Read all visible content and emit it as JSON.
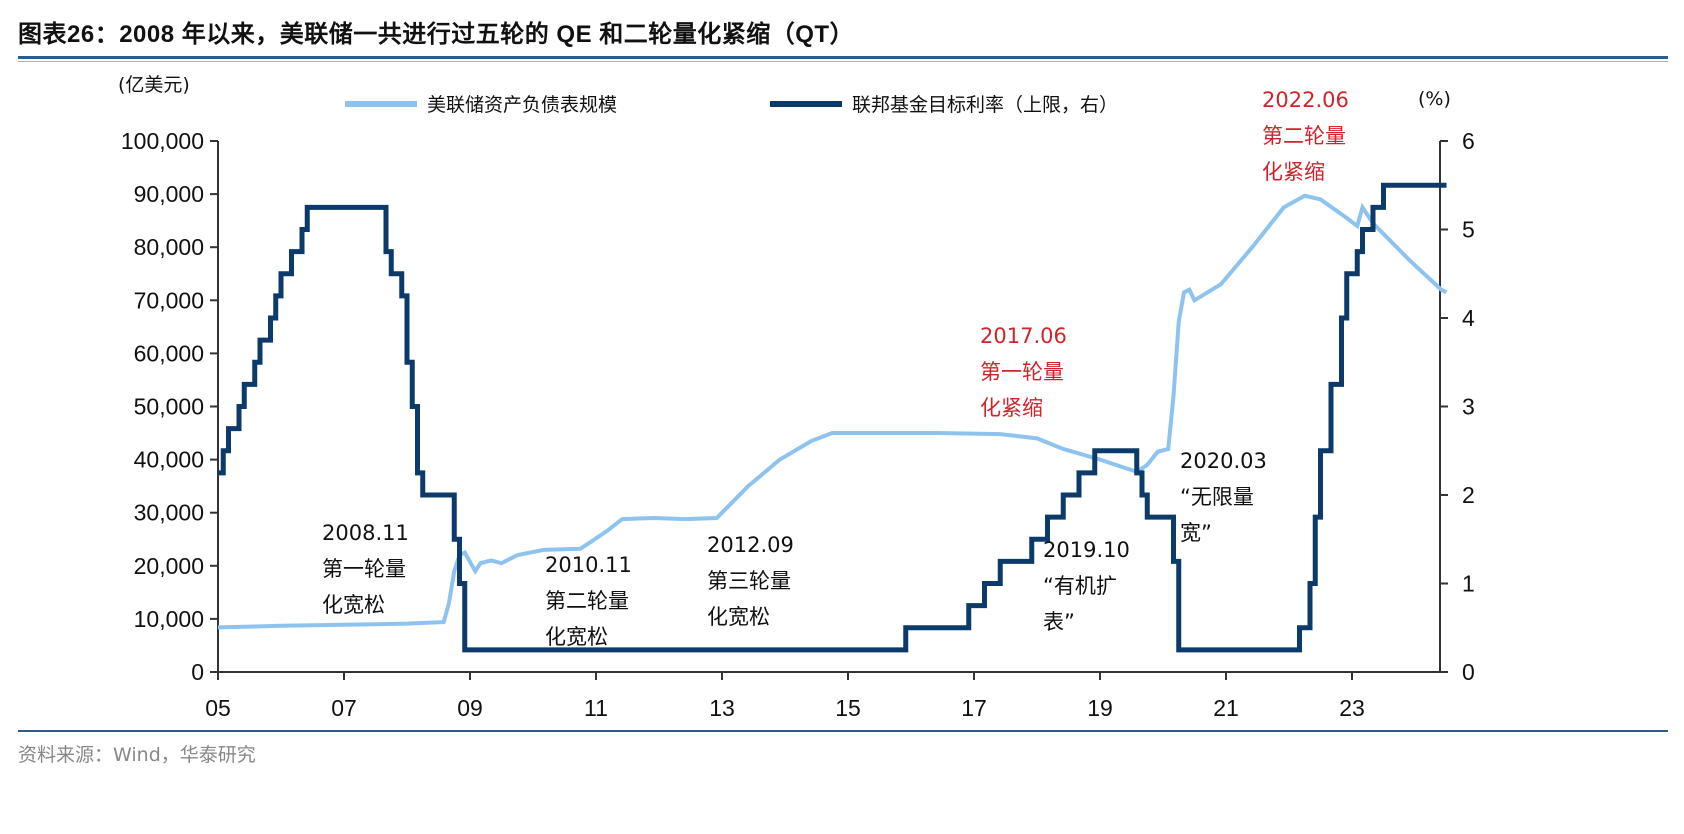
{
  "title": "图表26：2008 年以来，美联储一共进行过五轮的 QE 和二轮量化紧缩（QT）",
  "source": "资料来源：Wind，华泰研究",
  "chart_data": {
    "type": "line",
    "title": "图表26：2008 年以来，美联储一共进行过五轮的 QE 和二轮量化紧缩（QT）",
    "left_axis": {
      "unit_label": "(亿美元)",
      "ylim": [
        0,
        100000
      ],
      "ticks": [
        "0",
        "10,000",
        "20,000",
        "30,000",
        "40,000",
        "50,000",
        "60,000",
        "70,000",
        "80,000",
        "90,000",
        "100,000"
      ]
    },
    "right_axis": {
      "unit_label": "(%)",
      "ylim": [
        0,
        6
      ],
      "ticks": [
        "0",
        "1",
        "2",
        "3",
        "4",
        "5",
        "6"
      ]
    },
    "x_axis": {
      "xlim": [
        "2005-01",
        "2024-07"
      ],
      "ticks": [
        "05",
        "07",
        "09",
        "11",
        "13",
        "15",
        "17",
        "19",
        "21",
        "23"
      ]
    },
    "grid": false,
    "legend_position": "top",
    "series": [
      {
        "name": "美联储资产负债表规模",
        "axis": "left",
        "color": "#8ec3f0",
        "points": [
          [
            "2005-01",
            8400
          ],
          [
            "2006-01",
            8700
          ],
          [
            "2007-01",
            8900
          ],
          [
            "2008-01",
            9100
          ],
          [
            "2008-08",
            9400
          ],
          [
            "2008-09",
            13000
          ],
          [
            "2008-10",
            19000
          ],
          [
            "2008-11",
            22000
          ],
          [
            "2008-12",
            22500
          ],
          [
            "2009-02",
            19000
          ],
          [
            "2009-03",
            20500
          ],
          [
            "2009-05",
            21000
          ],
          [
            "2009-07",
            20500
          ],
          [
            "2009-10",
            22000
          ],
          [
            "2010-03",
            23000
          ],
          [
            "2010-10",
            23200
          ],
          [
            "2010-12",
            24500
          ],
          [
            "2011-03",
            26500
          ],
          [
            "2011-06",
            28800
          ],
          [
            "2011-12",
            29000
          ],
          [
            "2012-06",
            28800
          ],
          [
            "2012-12",
            29000
          ],
          [
            "2013-03",
            32000
          ],
          [
            "2013-06",
            35000
          ],
          [
            "2013-12",
            40000
          ],
          [
            "2014-06",
            43500
          ],
          [
            "2014-10",
            45000
          ],
          [
            "2015-06",
            45000
          ],
          [
            "2016-06",
            45000
          ],
          [
            "2017-06",
            44800
          ],
          [
            "2018-01",
            44000
          ],
          [
            "2018-06",
            42000
          ],
          [
            "2019-01",
            40000
          ],
          [
            "2019-08",
            37700
          ],
          [
            "2019-10",
            39000
          ],
          [
            "2019-12",
            41500
          ],
          [
            "2020-02",
            42000
          ],
          [
            "2020-03",
            52000
          ],
          [
            "2020-04",
            66000
          ],
          [
            "2020-05",
            71500
          ],
          [
            "2020-06",
            72000
          ],
          [
            "2020-07",
            70000
          ],
          [
            "2020-12",
            73000
          ],
          [
            "2021-06",
            80000
          ],
          [
            "2021-12",
            87500
          ],
          [
            "2022-04",
            89700
          ],
          [
            "2022-07",
            89000
          ],
          [
            "2022-12",
            85500
          ],
          [
            "2023-02",
            84000
          ],
          [
            "2023-03",
            87500
          ],
          [
            "2023-05",
            84500
          ],
          [
            "2023-12",
            77500
          ],
          [
            "2024-06",
            72000
          ],
          [
            "2024-07",
            71500
          ]
        ]
      },
      {
        "name": "联邦基金目标利率（上限，右）",
        "axis": "right",
        "color": "#0b3a6b",
        "step": true,
        "points": [
          [
            "2005-01",
            2.25
          ],
          [
            "2005-02",
            2.5
          ],
          [
            "2005-03",
            2.75
          ],
          [
            "2005-05",
            3.0
          ],
          [
            "2005-06",
            3.25
          ],
          [
            "2005-08",
            3.5
          ],
          [
            "2005-09",
            3.75
          ],
          [
            "2005-11",
            4.0
          ],
          [
            "2005-12",
            4.25
          ],
          [
            "2006-01",
            4.5
          ],
          [
            "2006-03",
            4.75
          ],
          [
            "2006-05",
            5.0
          ],
          [
            "2006-06",
            5.25
          ],
          [
            "2007-09",
            4.75
          ],
          [
            "2007-10",
            4.5
          ],
          [
            "2007-12",
            4.25
          ],
          [
            "2008-01",
            3.5
          ],
          [
            "2008-02",
            3.0
          ],
          [
            "2008-03",
            2.25
          ],
          [
            "2008-04",
            2.0
          ],
          [
            "2008-10",
            1.5
          ],
          [
            "2008-11",
            1.0
          ],
          [
            "2008-12",
            0.25
          ],
          [
            "2015-12",
            0.5
          ],
          [
            "2016-12",
            0.75
          ],
          [
            "2017-03",
            1.0
          ],
          [
            "2017-06",
            1.25
          ],
          [
            "2017-12",
            1.5
          ],
          [
            "2018-03",
            1.75
          ],
          [
            "2018-06",
            2.0
          ],
          [
            "2018-09",
            2.25
          ],
          [
            "2018-12",
            2.5
          ],
          [
            "2019-08",
            2.25
          ],
          [
            "2019-09",
            2.0
          ],
          [
            "2019-10",
            1.75
          ],
          [
            "2020-03",
            1.25
          ],
          [
            "2020-04",
            0.25
          ],
          [
            "2022-03",
            0.5
          ],
          [
            "2022-05",
            1.0
          ],
          [
            "2022-06",
            1.75
          ],
          [
            "2022-07",
            2.5
          ],
          [
            "2022-09",
            3.25
          ],
          [
            "2022-11",
            4.0
          ],
          [
            "2022-12",
            4.5
          ],
          [
            "2023-02",
            4.75
          ],
          [
            "2023-03",
            5.0
          ],
          [
            "2023-05",
            5.25
          ],
          [
            "2023-07",
            5.5
          ],
          [
            "2024-07",
            5.5
          ]
        ]
      }
    ],
    "annotations": [
      {
        "lines": [
          "2008.11",
          "第一轮量",
          "化宽松"
        ],
        "color": "#111111"
      },
      {
        "lines": [
          "2010.11",
          "第二轮量",
          "化宽松"
        ],
        "color": "#111111"
      },
      {
        "lines": [
          "2012.09",
          "第三轮量",
          "化宽松"
        ],
        "color": "#111111"
      },
      {
        "lines": [
          "2017.06",
          "第一轮量",
          "化紧缩"
        ],
        "color": "#d2232a"
      },
      {
        "lines": [
          "2019.10",
          "“有机扩",
          "表”"
        ],
        "color": "#111111"
      },
      {
        "lines": [
          "2020.03",
          "“无限量",
          "宽”"
        ],
        "color": "#111111"
      },
      {
        "lines": [
          "2022.06",
          "第二轮量",
          "化紧缩"
        ],
        "color": "#d2232a"
      }
    ]
  }
}
